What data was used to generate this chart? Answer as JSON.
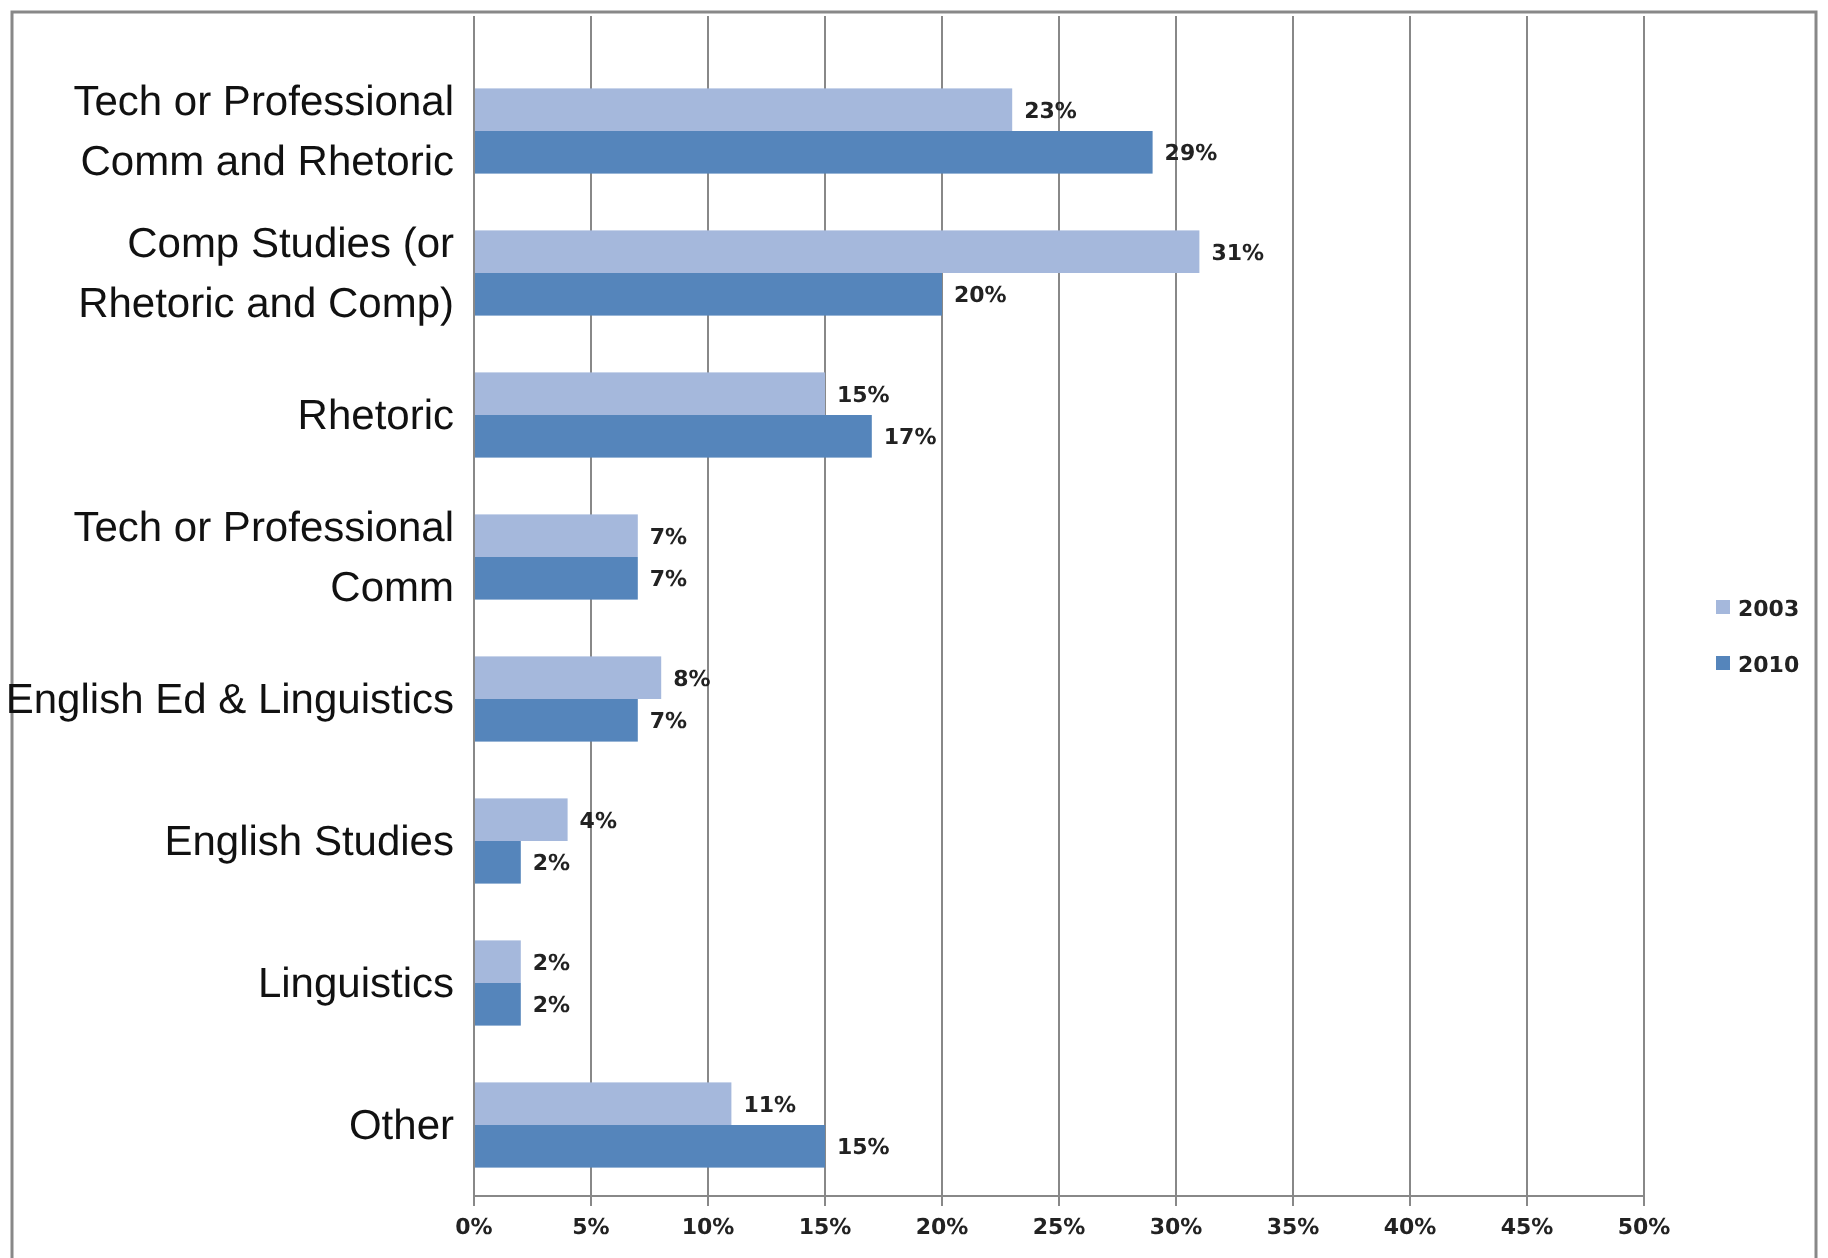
{
  "chart_data": {
    "type": "bar",
    "orientation": "horizontal",
    "categories": [
      "Tech or Professional Comm and Rhetoric",
      "Comp Studies (or Rhetoric and Comp)",
      "Rhetoric",
      "Tech or Professional Comm",
      "English Ed & Linguistics",
      "English Studies",
      "Linguistics",
      "Other"
    ],
    "series": [
      {
        "name": "2003",
        "color": "#a5b8dc",
        "values": [
          23,
          31,
          15,
          7,
          8,
          4,
          2,
          11
        ],
        "value_labels": [
          "23%",
          "31%",
          "15%",
          "7%",
          "8%",
          "4%",
          "2%",
          "11%"
        ]
      },
      {
        "name": "2010",
        "color": "#5585bb",
        "values": [
          29,
          20,
          17,
          7,
          7,
          2,
          2,
          15
        ],
        "value_labels": [
          "29%",
          "20%",
          "17%",
          "7%",
          "7%",
          "2%",
          "2%",
          "15%"
        ]
      }
    ],
    "xlim": [
      0,
      50
    ],
    "xticks": [
      {
        "value": 0,
        "label": "0%"
      },
      {
        "value": 5,
        "label": "5%"
      },
      {
        "value": 10,
        "label": "10%"
      },
      {
        "value": 15,
        "label": "15%"
      },
      {
        "value": 20,
        "label": "20%"
      },
      {
        "value": 25,
        "label": "25%"
      },
      {
        "value": 30,
        "label": "30%"
      },
      {
        "value": 35,
        "label": "35%"
      },
      {
        "value": 40,
        "label": "40%"
      },
      {
        "value": 45,
        "label": "45%"
      },
      {
        "value": 50,
        "label": "50%"
      }
    ],
    "grid": "x",
    "legend": "right"
  }
}
